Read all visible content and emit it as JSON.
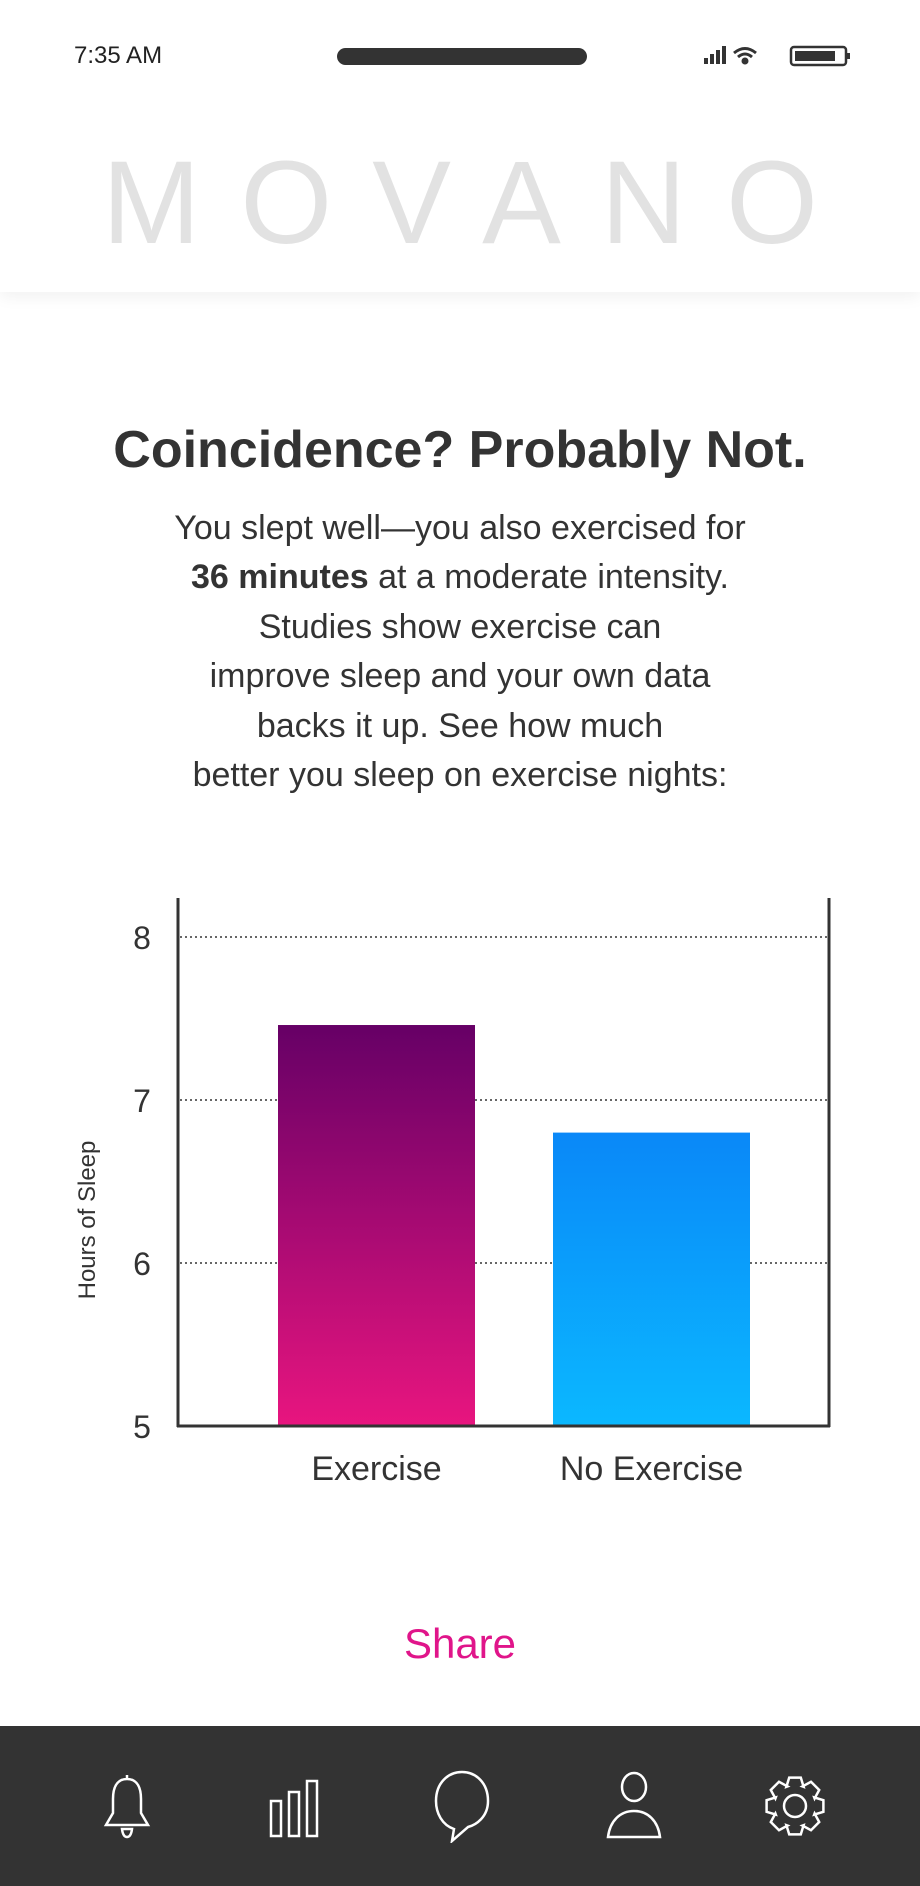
{
  "status_bar": {
    "time": "7:35 AM"
  },
  "header": {
    "logo": "MOVANO"
  },
  "main": {
    "title": "Coincidence? Probably Not.",
    "body_line1": "You slept well—you also exercised for",
    "body_bold": "36 minutes",
    "body_line2_rest": " at a moderate intensity.",
    "body_line3": "Studies show exercise can",
    "body_line4": "improve sleep and your own data",
    "body_line5": "backs it up. See how much",
    "body_line6": "better you sleep on exercise nights:",
    "share_label": "Share"
  },
  "chart_data": {
    "type": "bar",
    "categories": [
      "Exercise",
      "No Exercise"
    ],
    "values": [
      7.46,
      6.8
    ],
    "ylabel": "Hours of Sleep",
    "xlabel": "",
    "ylim": [
      5,
      8.25
    ],
    "yticks": [
      5,
      6,
      7,
      8
    ],
    "grid": "dotted horizontal at 6, 7, 8",
    "colors": [
      [
        "#660066",
        "#e8157f"
      ],
      [
        "#0a88f8",
        "#0bb8ff"
      ]
    ]
  },
  "nav": {
    "items": [
      {
        "icon": "bell-icon"
      },
      {
        "icon": "bar-chart-icon"
      },
      {
        "icon": "chat-bubble-icon"
      },
      {
        "icon": "user-icon"
      },
      {
        "icon": "gear-icon"
      }
    ]
  }
}
